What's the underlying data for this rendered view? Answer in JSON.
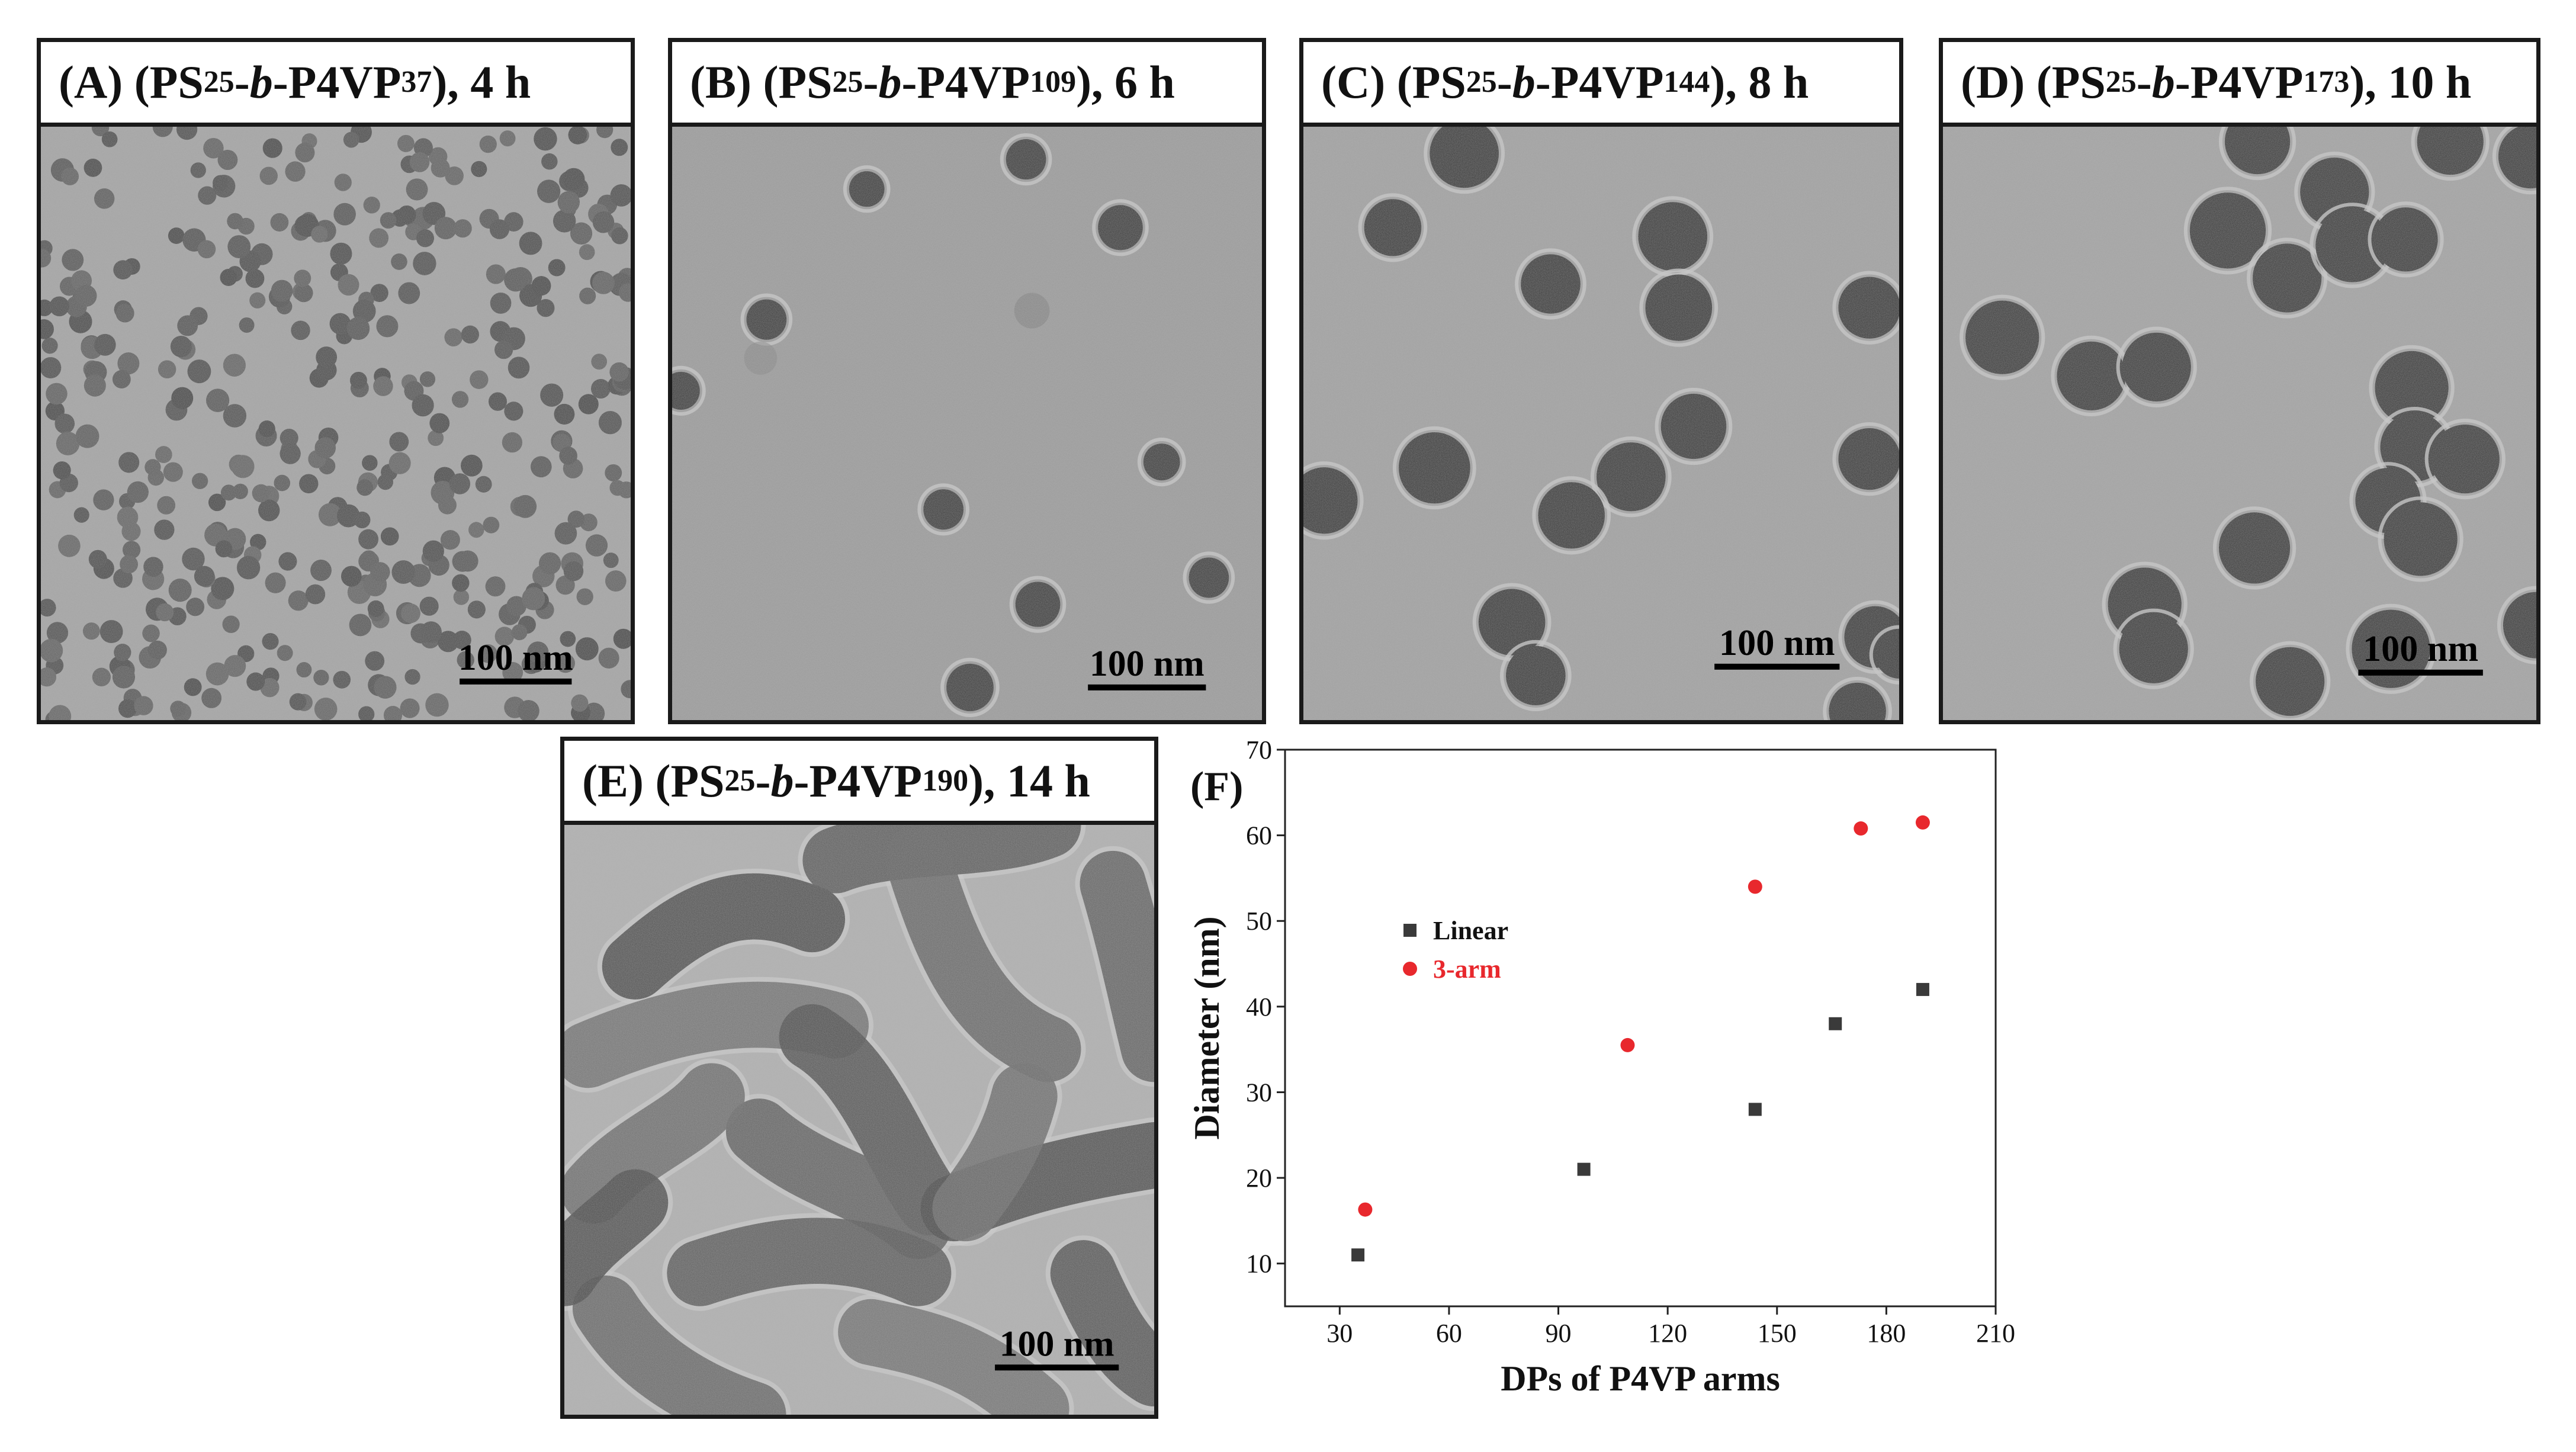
{
  "panels": [
    {
      "letter": "(A)",
      "pre": "(PS",
      "sub1": "25",
      "dash": "-",
      "b": "b",
      "mid": "-P4VP",
      "sub2": "37",
      "post": "), 4 h",
      "scale": "100 nm"
    },
    {
      "letter": "(B)",
      "pre": "(PS",
      "sub1": "25",
      "dash": "-",
      "b": "b",
      "mid": "-P4VP",
      "sub2": "109",
      "post": "), 6 h",
      "scale": "100 nm"
    },
    {
      "letter": "(C)",
      "pre": "(PS",
      "sub1": "25",
      "dash": "-",
      "b": "b",
      "mid": "-P4VP",
      "sub2": "144",
      "post": "), 8 h",
      "scale": "100 nm"
    },
    {
      "letter": "(D)",
      "pre": "(PS",
      "sub1": "25",
      "dash": "-",
      "b": "b",
      "mid": "-P4VP",
      "sub2": "173",
      "post": "), 10 h",
      "scale": "100 nm"
    },
    {
      "letter": "(E)",
      "pre": "(PS",
      "sub1": "25",
      "dash": "-",
      "b": "b",
      "mid": "-P4VP",
      "sub2": "190",
      "post": "), 14 h",
      "scale": "100 nm"
    }
  ],
  "chart_panel_letter": "(F)",
  "chart_data": {
    "type": "scatter",
    "xlabel": "DPs of P4VP arms",
    "ylabel": "Diameter (nm)",
    "xlim": [
      15,
      210
    ],
    "ylim": [
      5,
      70
    ],
    "xticks": [
      30,
      60,
      90,
      120,
      150,
      180,
      210
    ],
    "yticks": [
      10,
      20,
      30,
      40,
      50,
      60,
      70
    ],
    "legend_position": "center-left",
    "series": [
      {
        "name": "Linear",
        "color": "#3a3a3a",
        "marker": "square",
        "x": [
          35,
          97,
          144,
          166,
          190
        ],
        "y": [
          11,
          21,
          28,
          38,
          42
        ]
      },
      {
        "name": "3-arm",
        "color": "#e8282d",
        "marker": "circle",
        "x": [
          37,
          109,
          144,
          173,
          190
        ],
        "y": [
          16.3,
          35.5,
          54,
          60.8,
          61.5
        ]
      }
    ]
  }
}
